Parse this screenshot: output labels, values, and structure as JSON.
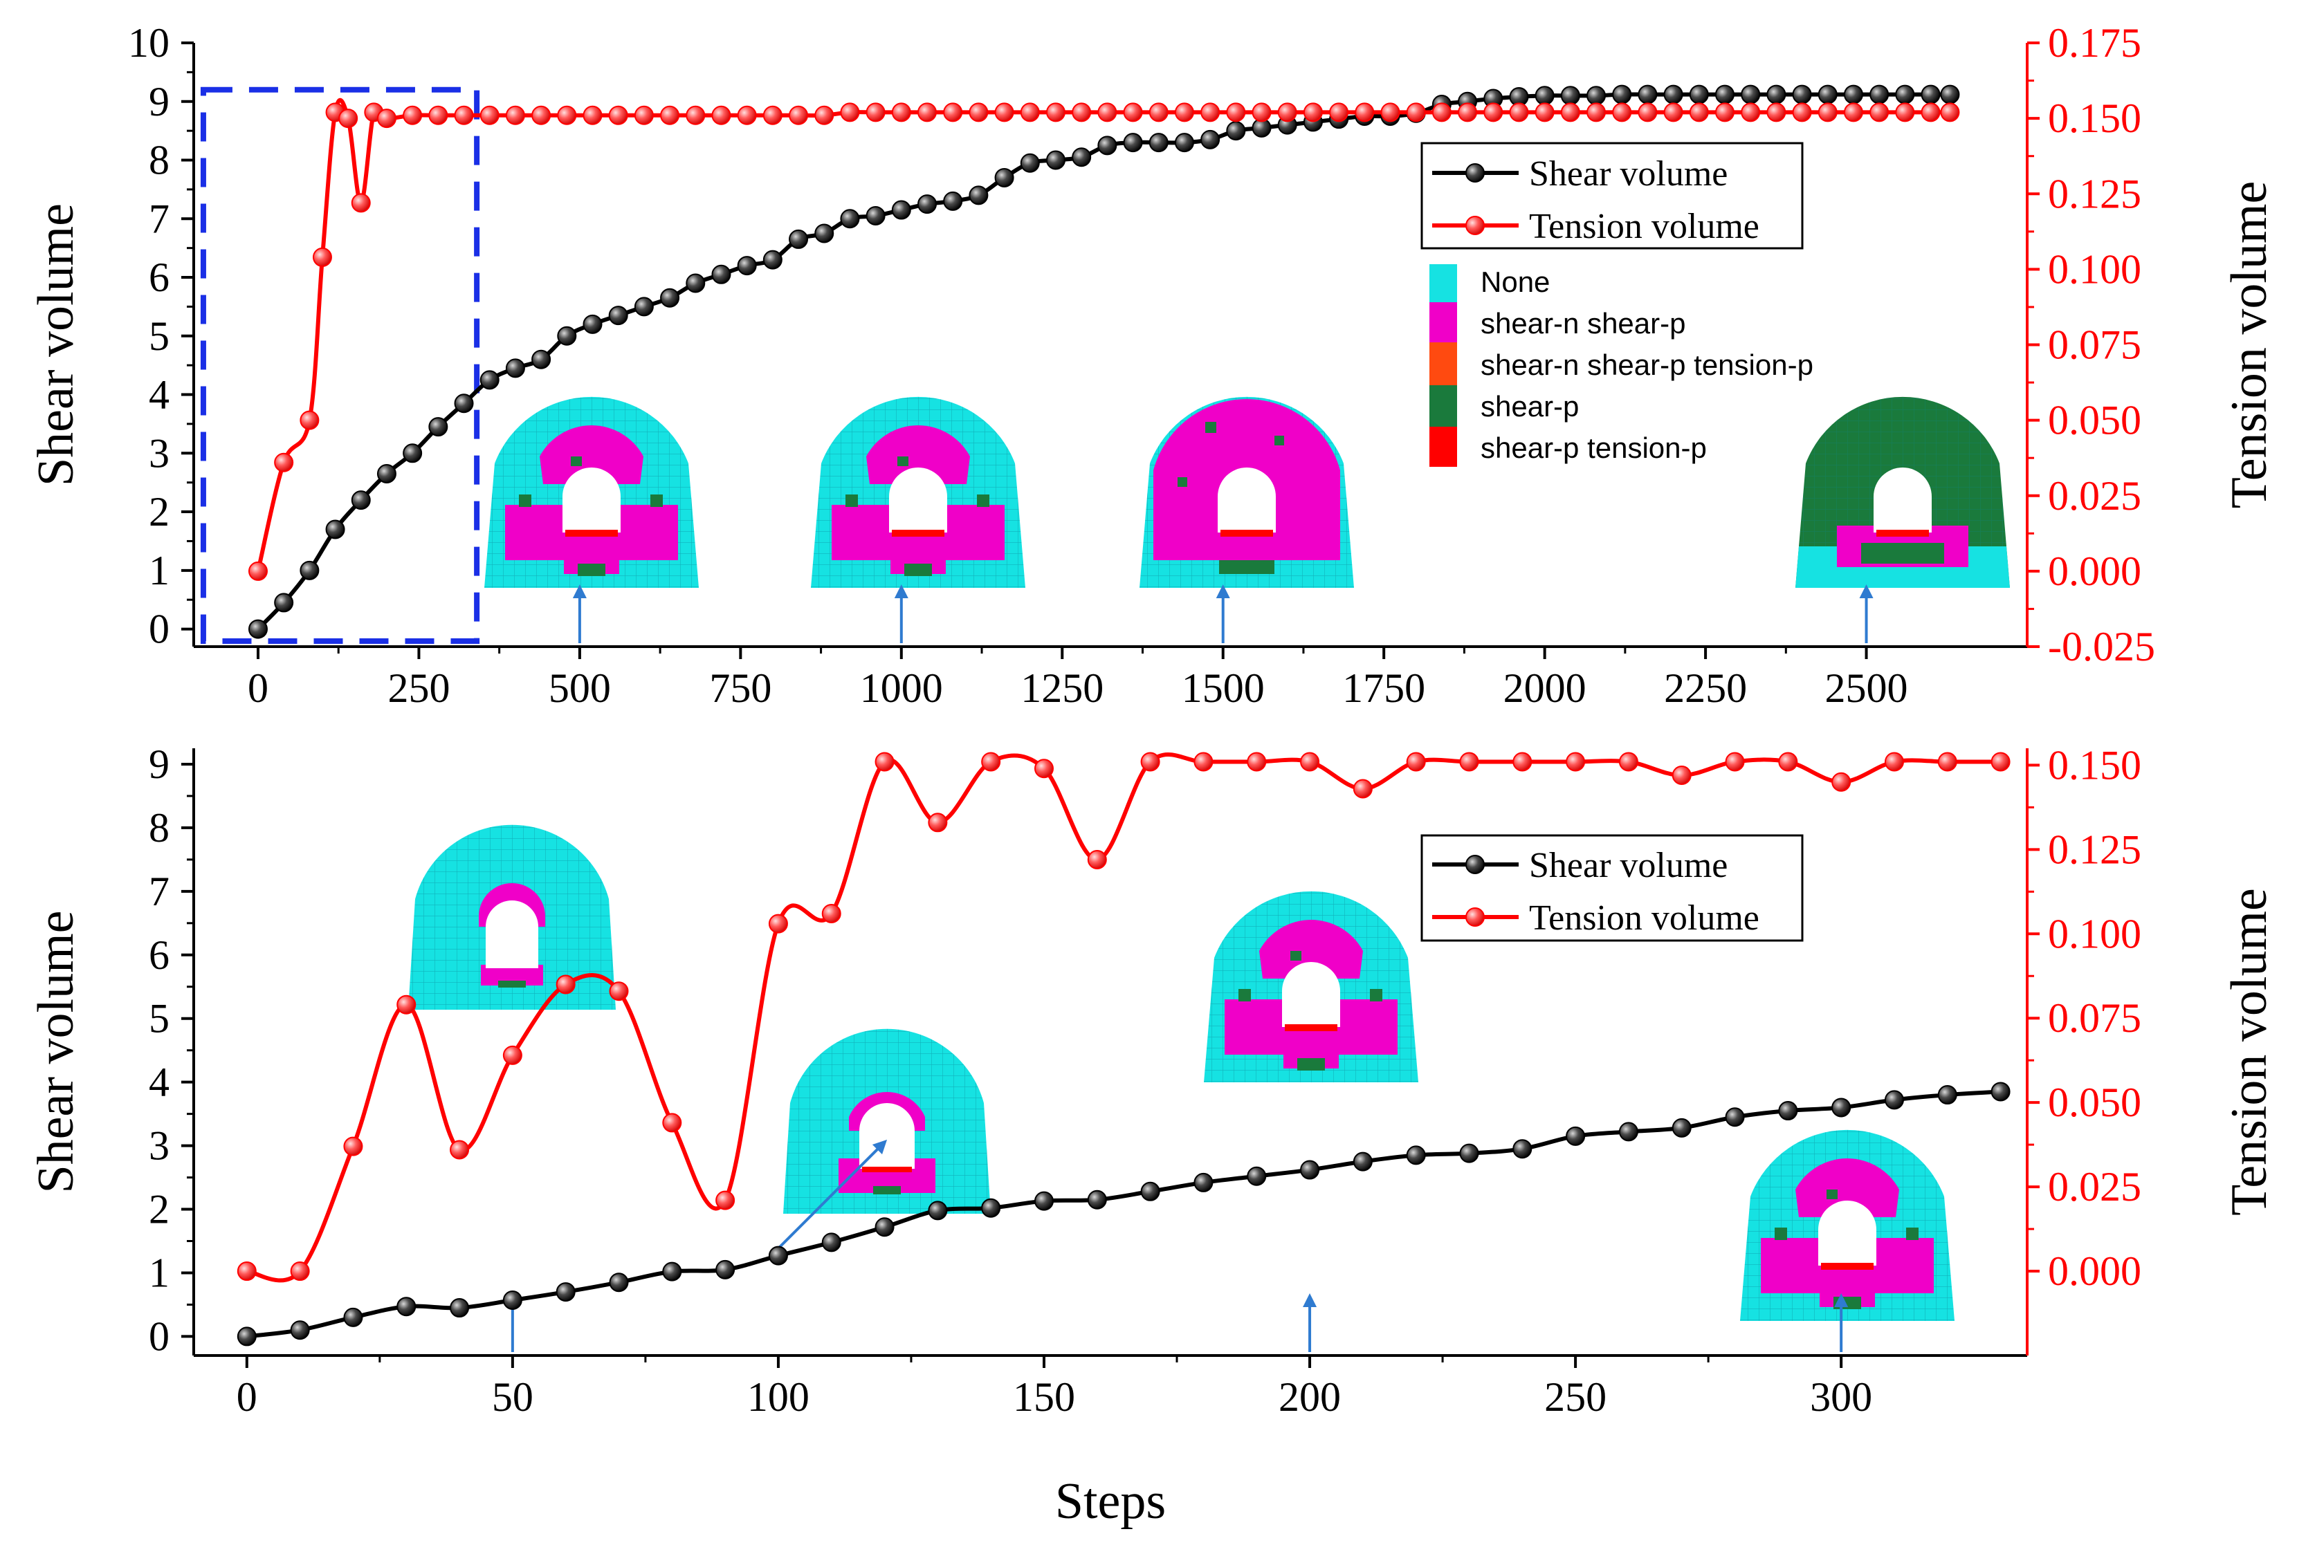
{
  "colors": {
    "shear": "#000000",
    "tension": "#ff0000",
    "box": "#1a2fe6",
    "arrow": "#2f7bd0",
    "none": "#16e2e2",
    "shear_n_shear_p": "#f000c8",
    "shear_n_shear_p_tension_p": "#ff4a10",
    "shear_p": "#1a7a3c",
    "shear_p_tension_p": "#ff0000"
  },
  "chart_data": [
    {
      "type": "line",
      "id": "top",
      "xlabel": "",
      "ylabel_left": "Shear volume",
      "ylabel_right": "Tension volume",
      "xlim": [
        -100,
        2750
      ],
      "ylim_left": [
        -0.3,
        10
      ],
      "ylim_right": [
        -0.025,
        0.175
      ],
      "xticks": [
        0,
        250,
        500,
        750,
        1000,
        1250,
        1500,
        1750,
        2000,
        2250,
        2500
      ],
      "yticks_left": [
        0,
        1,
        2,
        3,
        4,
        5,
        6,
        7,
        8,
        9,
        10
      ],
      "yticks_right": [
        "-0.025",
        "0.000",
        "0.025",
        "0.050",
        "0.075",
        "0.100",
        "0.125",
        "0.150",
        "0.175"
      ],
      "legend": [
        "Shear volume",
        "Tension volume"
      ],
      "legend_position": "top-right",
      "state_legend": [
        "None",
        "shear-n shear-p",
        "shear-n shear-p tension-p",
        "shear-p",
        "shear-p tension-p"
      ],
      "highlight_box": [
        -85,
        340
      ],
      "snapshot_arrows_at": [
        500,
        1000,
        1500,
        2500
      ],
      "series": [
        {
          "name": "Shear volume",
          "x": [
            0,
            40,
            80,
            120,
            160,
            200,
            240,
            280,
            320,
            360,
            400,
            440,
            480,
            520,
            560,
            600,
            640,
            680,
            720,
            760,
            800,
            840,
            880,
            920,
            960,
            1000,
            1040,
            1080,
            1120,
            1160,
            1200,
            1240,
            1280,
            1320,
            1360,
            1400,
            1440,
            1480,
            1520,
            1560,
            1600,
            1640,
            1680,
            1720,
            1760,
            1800,
            1840,
            1880,
            1920,
            1960,
            2000,
            2040,
            2080,
            2120,
            2160,
            2200,
            2240,
            2280,
            2320,
            2360,
            2400,
            2440,
            2480,
            2520,
            2560,
            2600,
            2630
          ],
          "y": [
            0,
            0.45,
            1.0,
            1.7,
            2.2,
            2.65,
            3.0,
            3.45,
            3.85,
            4.25,
            4.45,
            4.6,
            5.0,
            5.2,
            5.35,
            5.5,
            5.65,
            5.9,
            6.05,
            6.2,
            6.3,
            6.65,
            6.75,
            7.0,
            7.05,
            7.15,
            7.25,
            7.3,
            7.4,
            7.7,
            7.95,
            8.0,
            8.05,
            8.25,
            8.3,
            8.3,
            8.3,
            8.35,
            8.5,
            8.55,
            8.6,
            8.65,
            8.7,
            8.75,
            8.75,
            8.8,
            8.95,
            9.0,
            9.05,
            9.08,
            9.1,
            9.1,
            9.1,
            9.12,
            9.12,
            9.12,
            9.12,
            9.12,
            9.12,
            9.12,
            9.12,
            9.12,
            9.12,
            9.12,
            9.12,
            9.12,
            9.12
          ]
        },
        {
          "name": "Tension volume",
          "x": [
            0,
            40,
            80,
            100,
            120,
            140,
            160,
            180,
            200,
            240,
            280,
            320,
            360,
            400,
            440,
            480,
            520,
            560,
            600,
            640,
            680,
            720,
            760,
            800,
            840,
            880,
            920,
            960,
            1000,
            1040,
            1080,
            1120,
            1160,
            1200,
            1240,
            1280,
            1320,
            1360,
            1400,
            1440,
            1480,
            1520,
            1560,
            1600,
            1640,
            1680,
            1720,
            1760,
            1800,
            1840,
            1880,
            1920,
            1960,
            2000,
            2040,
            2080,
            2120,
            2160,
            2200,
            2240,
            2280,
            2320,
            2360,
            2400,
            2440,
            2480,
            2520,
            2560,
            2600,
            2630
          ],
          "y": [
            0,
            0.036,
            0.05,
            0.104,
            0.152,
            0.15,
            0.122,
            0.152,
            0.15,
            0.151,
            0.151,
            0.151,
            0.151,
            0.151,
            0.151,
            0.151,
            0.151,
            0.151,
            0.151,
            0.151,
            0.151,
            0.151,
            0.151,
            0.151,
            0.151,
            0.151,
            0.152,
            0.152,
            0.152,
            0.152,
            0.152,
            0.152,
            0.152,
            0.152,
            0.152,
            0.152,
            0.152,
            0.152,
            0.152,
            0.152,
            0.152,
            0.152,
            0.152,
            0.152,
            0.152,
            0.152,
            0.152,
            0.152,
            0.152,
            0.152,
            0.152,
            0.152,
            0.152,
            0.152,
            0.152,
            0.152,
            0.152,
            0.152,
            0.152,
            0.152,
            0.152,
            0.152,
            0.152,
            0.152,
            0.152,
            0.152,
            0.152,
            0.152,
            0.152,
            0.152
          ]
        }
      ]
    },
    {
      "type": "line",
      "id": "bottom",
      "xlabel": "Steps",
      "ylabel_left": "Shear volume",
      "ylabel_right": "Tension volume",
      "xlim": [
        -10,
        335
      ],
      "ylim_left": [
        -0.3,
        9.25
      ],
      "ylim_right": [
        -0.025,
        0.155
      ],
      "xticks": [
        0,
        50,
        100,
        150,
        200,
        250,
        300
      ],
      "yticks_left": [
        0,
        1,
        2,
        3,
        4,
        5,
        6,
        7,
        8,
        9
      ],
      "yticks_right": [
        "0.000",
        "0.025",
        "0.050",
        "0.075",
        "0.100",
        "0.125",
        "0.150"
      ],
      "legend": [
        "Shear volume",
        "Tension volume"
      ],
      "legend_position": "center-right",
      "snapshot_arrows_at": [
        50,
        200,
        300
      ],
      "series": [
        {
          "name": "Shear volume",
          "x": [
            0,
            10,
            20,
            30,
            40,
            50,
            60,
            70,
            80,
            90,
            100,
            110,
            120,
            130,
            140,
            150,
            160,
            170,
            180,
            190,
            200,
            210,
            220,
            230,
            240,
            250,
            260,
            270,
            280,
            290,
            300,
            310,
            320,
            330
          ],
          "y": [
            0,
            0.1,
            0.3,
            0.47,
            0.45,
            0.57,
            0.7,
            0.85,
            1.02,
            1.05,
            1.27,
            1.48,
            1.72,
            1.98,
            2.02,
            2.13,
            2.15,
            2.28,
            2.42,
            2.52,
            2.62,
            2.75,
            2.85,
            2.88,
            2.95,
            3.15,
            3.22,
            3.28,
            3.45,
            3.55,
            3.6,
            3.72,
            3.8,
            3.85
          ]
        },
        {
          "name": "Tension volume",
          "x": [
            0,
            10,
            20,
            30,
            40,
            50,
            60,
            70,
            80,
            90,
            100,
            110,
            120,
            130,
            140,
            150,
            160,
            170,
            180,
            190,
            200,
            210,
            220,
            230,
            240,
            250,
            260,
            270,
            280,
            290,
            300,
            310,
            320,
            330
          ],
          "y": [
            0,
            0,
            0.037,
            0.079,
            0.036,
            0.064,
            0.085,
            0.083,
            0.044,
            0.021,
            0.103,
            0.106,
            0.151,
            0.133,
            0.151,
            0.149,
            0.122,
            0.151,
            0.151,
            0.151,
            0.151,
            0.143,
            0.151,
            0.151,
            0.151,
            0.151,
            0.151,
            0.147,
            0.151,
            0.151,
            0.145,
            0.151,
            0.151,
            0.151
          ]
        }
      ]
    }
  ]
}
